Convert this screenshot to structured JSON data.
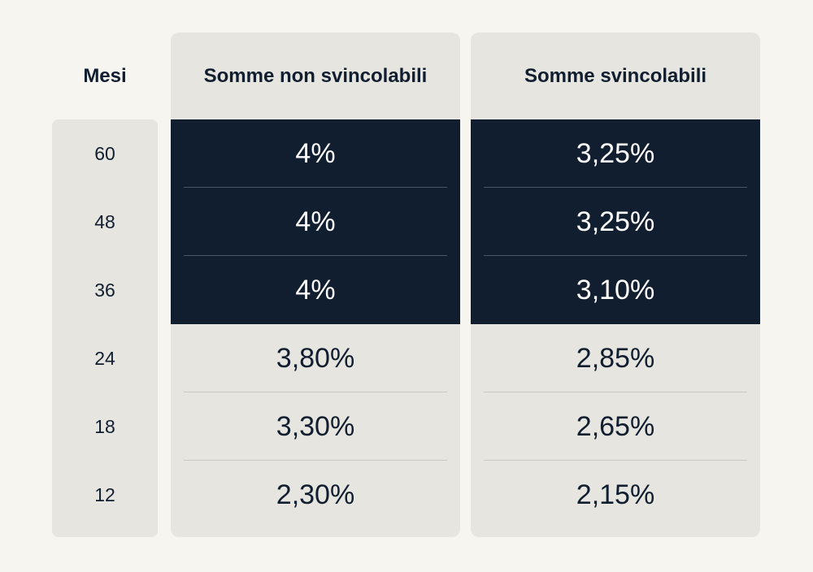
{
  "chart_data": {
    "type": "table",
    "columns": [
      "Mesi",
      "Somme non svincolabili",
      "Somme svincolabili"
    ],
    "rows": [
      {
        "mesi": "60",
        "non_svincolabili": "4%",
        "svincolabili": "3,25%",
        "highlighted": true
      },
      {
        "mesi": "48",
        "non_svincolabili": "4%",
        "svincolabili": "3,25%",
        "highlighted": true
      },
      {
        "mesi": "36",
        "non_svincolabili": "4%",
        "svincolabili": "3,10%",
        "highlighted": true
      },
      {
        "mesi": "24",
        "non_svincolabili": "3,80%",
        "svincolabili": "2,85%",
        "highlighted": false
      },
      {
        "mesi": "18",
        "non_svincolabili": "3,30%",
        "svincolabili": "2,65%",
        "highlighted": false
      },
      {
        "mesi": "12",
        "non_svincolabili": "2,30%",
        "svincolabili": "2,15%",
        "highlighted": false
      }
    ],
    "colors": {
      "background": "#f6f5f0",
      "panel": "#e6e5df",
      "highlight": "#111e30",
      "text": "#111e30",
      "highlight_text": "#ffffff"
    }
  }
}
